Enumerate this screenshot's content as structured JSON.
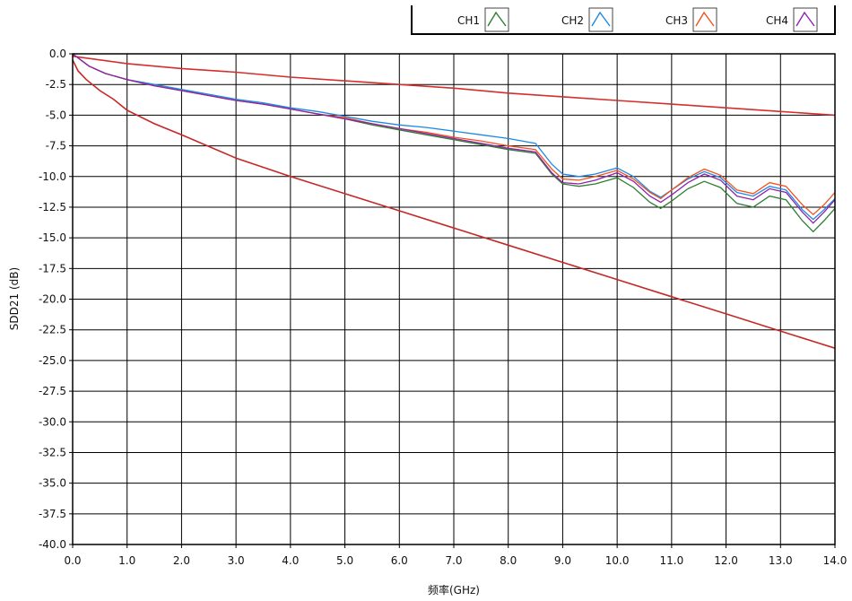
{
  "chart_data": {
    "type": "line",
    "xlabel": "频率(GHz)",
    "ylabel": "SDD21 (dB)",
    "xlim": [
      0,
      14
    ],
    "ylim": [
      -40,
      0
    ],
    "x_ticks": [
      "0.0",
      "1.0",
      "2.0",
      "3.0",
      "4.0",
      "5.0",
      "6.0",
      "7.0",
      "8.0",
      "9.0",
      "10.0",
      "11.0",
      "12.0",
      "13.0",
      "14.0"
    ],
    "y_ticks": [
      "0.0",
      "-2.5",
      "-5.0",
      "-7.5",
      "-10.0",
      "-12.5",
      "-15.0",
      "-17.5",
      "-20.0",
      "-22.5",
      "-25.0",
      "-27.5",
      "-30.0",
      "-32.5",
      "-35.0",
      "-37.5",
      "-40.0"
    ],
    "grid": true,
    "legend_position": "top-right",
    "series": [
      {
        "name": "CH1",
        "color": "#2e7d32",
        "x": [
          0,
          0.3,
          0.6,
          1,
          1.5,
          2,
          2.5,
          3,
          3.5,
          4,
          4.5,
          5,
          5.5,
          6,
          6.5,
          7,
          7.5,
          8,
          8.5,
          8.8,
          9,
          9.3,
          9.6,
          10,
          10.3,
          10.6,
          10.8,
          11,
          11.3,
          11.6,
          11.9,
          12.2,
          12.5,
          12.8,
          13.1,
          13.4,
          13.6,
          13.8,
          14
        ],
        "y": [
          0,
          -1.0,
          -1.6,
          -2.1,
          -2.6,
          -3.0,
          -3.4,
          -3.8,
          -4.1,
          -4.5,
          -4.9,
          -5.3,
          -5.8,
          -6.2,
          -6.6,
          -7.0,
          -7.4,
          -7.8,
          -8.1,
          -9.8,
          -10.6,
          -10.8,
          -10.6,
          -10.1,
          -10.9,
          -12.1,
          -12.6,
          -12.0,
          -11.0,
          -10.4,
          -10.9,
          -12.2,
          -12.5,
          -11.6,
          -11.9,
          -13.6,
          -14.5,
          -13.6,
          -12.6
        ]
      },
      {
        "name": "CH2",
        "color": "#1e88e5",
        "x": [
          0,
          0.3,
          0.6,
          1,
          1.5,
          2,
          2.5,
          3,
          3.5,
          4,
          4.5,
          5,
          5.5,
          6,
          6.5,
          7,
          7.5,
          8,
          8.5,
          8.8,
          9,
          9.3,
          9.6,
          10,
          10.3,
          10.6,
          10.8,
          11,
          11.3,
          11.6,
          11.9,
          12.2,
          12.5,
          12.8,
          13.1,
          13.4,
          13.6,
          13.8,
          14
        ],
        "y": [
          0,
          -1.0,
          -1.6,
          -2.1,
          -2.5,
          -2.9,
          -3.3,
          -3.7,
          -4.0,
          -4.4,
          -4.7,
          -5.1,
          -5.5,
          -5.8,
          -6.0,
          -6.3,
          -6.6,
          -6.9,
          -7.3,
          -9.0,
          -9.8,
          -10.0,
          -9.8,
          -9.3,
          -10.0,
          -11.2,
          -11.7,
          -11.1,
          -10.2,
          -9.6,
          -10.1,
          -11.3,
          -11.6,
          -10.8,
          -11.1,
          -12.7,
          -13.5,
          -12.7,
          -11.8
        ]
      },
      {
        "name": "CH3",
        "color": "#f4511e",
        "x": [
          0,
          0.3,
          0.6,
          1,
          1.5,
          2,
          2.5,
          3,
          3.5,
          4,
          4.5,
          5,
          5.5,
          6,
          6.5,
          7,
          7.5,
          8,
          8.5,
          8.8,
          9,
          9.3,
          9.6,
          10,
          10.3,
          10.6,
          10.8,
          11,
          11.3,
          11.6,
          11.9,
          12.2,
          12.5,
          12.8,
          13.1,
          13.4,
          13.6,
          13.8,
          14
        ],
        "y": [
          0,
          -1.0,
          -1.6,
          -2.1,
          -2.6,
          -3.0,
          -3.4,
          -3.8,
          -4.1,
          -4.5,
          -4.9,
          -5.2,
          -5.7,
          -6.1,
          -6.4,
          -6.8,
          -7.1,
          -7.5,
          -7.8,
          -9.4,
          -10.2,
          -10.3,
          -10.0,
          -9.5,
          -10.2,
          -11.3,
          -11.8,
          -11.1,
          -10.1,
          -9.4,
          -9.9,
          -11.1,
          -11.4,
          -10.5,
          -10.8,
          -12.3,
          -13.1,
          -12.3,
          -11.3
        ]
      },
      {
        "name": "CH4",
        "color": "#8e24aa",
        "x": [
          0,
          0.3,
          0.6,
          1,
          1.5,
          2,
          2.5,
          3,
          3.5,
          4,
          4.5,
          5,
          5.5,
          6,
          6.5,
          7,
          7.5,
          8,
          8.5,
          8.8,
          9,
          9.3,
          9.6,
          10,
          10.3,
          10.6,
          10.8,
          11,
          11.3,
          11.6,
          11.9,
          12.2,
          12.5,
          12.8,
          13.1,
          13.4,
          13.6,
          13.8,
          14
        ],
        "y": [
          0,
          -1.0,
          -1.6,
          -2.1,
          -2.6,
          -3.0,
          -3.4,
          -3.8,
          -4.1,
          -4.5,
          -4.9,
          -5.3,
          -5.7,
          -6.1,
          -6.5,
          -6.9,
          -7.3,
          -7.7,
          -8.0,
          -9.7,
          -10.5,
          -10.6,
          -10.3,
          -9.7,
          -10.4,
          -11.6,
          -12.1,
          -11.5,
          -10.5,
          -9.8,
          -10.3,
          -11.6,
          -11.9,
          -11.0,
          -11.3,
          -12.9,
          -13.8,
          -12.9,
          -11.9
        ]
      }
    ],
    "limit_lines": [
      {
        "color": "#d32f2f",
        "x": [
          0,
          1,
          2,
          3,
          4,
          5,
          6,
          7,
          8,
          9,
          10,
          11,
          12,
          13,
          14
        ],
        "y": [
          -0.2,
          -0.8,
          -1.2,
          -1.5,
          -1.9,
          -2.2,
          -2.5,
          -2.8,
          -3.2,
          -3.5,
          -3.8,
          -4.1,
          -4.4,
          -4.7,
          -5.0
        ]
      },
      {
        "color": "#c62828",
        "x": [
          0,
          0.1,
          0.25,
          0.5,
          0.75,
          1,
          1.5,
          2,
          3,
          4,
          5,
          6,
          7,
          8,
          9,
          10,
          11,
          12,
          13,
          14
        ],
        "y": [
          -0.5,
          -1.4,
          -2.1,
          -3.0,
          -3.7,
          -4.6,
          -5.7,
          -6.6,
          -8.5,
          -10.0,
          -11.4,
          -12.8,
          -14.2,
          -15.6,
          -17.0,
          -18.4,
          -19.8,
          -21.2,
          -22.6,
          -24.0
        ]
      }
    ]
  }
}
